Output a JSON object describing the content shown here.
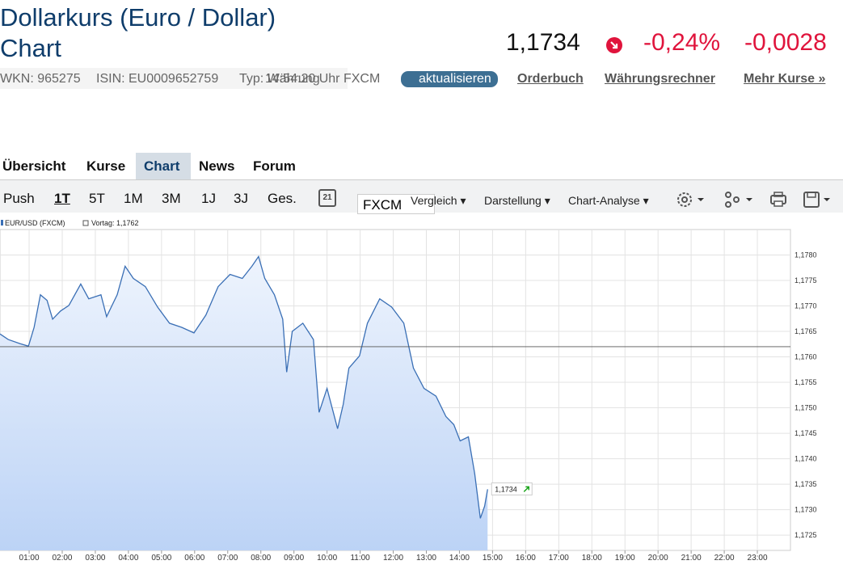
{
  "header": {
    "title": "Dollarkurs (Euro / Dollar)",
    "subtitle": "Chart",
    "price": "1,1734",
    "change_pct": "-0,24%",
    "change_abs": "-0,0028"
  },
  "info": {
    "wkn": "WKN: 965275",
    "isin": "ISIN: EU0009652759",
    "typ": "Typ: Währung",
    "time": "14:54:20 Uhr FXCM",
    "button": "aktualisieren",
    "links": [
      "Orderbuch",
      "Währungsrechner",
      "Mehr Kurse »"
    ]
  },
  "tabs": [
    "Übersicht",
    "Kurse",
    "Chart",
    "News",
    "Forum"
  ],
  "ranges": [
    "Push",
    "1T",
    "5T",
    "1M",
    "3M",
    "1J",
    "3J",
    "Ges."
  ],
  "toolbar": {
    "calendar": "21",
    "exchange": "FXCM",
    "menus": [
      "Vergleich",
      "Darstellung",
      "Chart-Analyse"
    ]
  },
  "chart_data": {
    "type": "line",
    "x": [
      0.12,
      0.37,
      0.73,
      0.98,
      1.15,
      1.34,
      1.54,
      1.71,
      1.95,
      2.2,
      2.56,
      2.8,
      3.17,
      3.34,
      3.66,
      3.9,
      4.15,
      4.51,
      4.88,
      5.24,
      5.61,
      5.98,
      6.34,
      6.71,
      7.07,
      7.44,
      7.73,
      7.93,
      8.12,
      8.41,
      8.66,
      8.78,
      8.95,
      9.27,
      9.59,
      9.76,
      10.0,
      10.32,
      10.49,
      10.66,
      10.98,
      11.22,
      11.59,
      11.95,
      12.32,
      12.61,
      12.93,
      13.29,
      13.59,
      13.83,
      14.02,
      14.27,
      14.46,
      14.63,
      14.76,
      14.85
    ],
    "series": [
      {
        "name": "EUR/USD (FXCM)",
        "color": "#3a6fb5",
        "values": [
          1.17645,
          1.17634,
          1.17626,
          1.17621,
          1.17658,
          1.17722,
          1.17711,
          1.17674,
          1.1769,
          1.17701,
          1.17743,
          1.17714,
          1.17722,
          1.17679,
          1.17722,
          1.17778,
          1.17754,
          1.17738,
          1.17698,
          1.17666,
          1.17658,
          1.17647,
          1.17682,
          1.17738,
          1.17762,
          1.17754,
          1.17778,
          1.17797,
          1.17754,
          1.17722,
          1.17674,
          1.1757,
          1.1765,
          1.17666,
          1.17634,
          1.17491,
          1.17538,
          1.17459,
          1.17507,
          1.17578,
          1.17602,
          1.17666,
          1.17714,
          1.17698,
          1.17666,
          1.17578,
          1.17538,
          1.17523,
          1.17483,
          1.17467,
          1.17435,
          1.17443,
          1.17371,
          1.17283,
          1.17307,
          1.1734
        ]
      }
    ],
    "end_label": "1,1734",
    "reference_line": {
      "value": 1.1762,
      "label": "Vortag: 1,1762"
    },
    "xlim": [
      0.12,
      24
    ],
    "xticks": [
      {
        "value": 1,
        "label": "01:00"
      },
      {
        "value": 2,
        "label": "02:00"
      },
      {
        "value": 3,
        "label": "03:00"
      },
      {
        "value": 4,
        "label": "04:00"
      },
      {
        "value": 5,
        "label": "05:00"
      },
      {
        "value": 6,
        "label": "06:00"
      },
      {
        "value": 7,
        "label": "07:00"
      },
      {
        "value": 8,
        "label": "08:00"
      },
      {
        "value": 9,
        "label": "09:00"
      },
      {
        "value": 10,
        "label": "10:00"
      },
      {
        "value": 11,
        "label": "11:00"
      },
      {
        "value": 12,
        "label": "12:00"
      },
      {
        "value": 13,
        "label": "13:00"
      },
      {
        "value": 14,
        "label": "14:00"
      },
      {
        "value": 15,
        "label": "15:00"
      },
      {
        "value": 16,
        "label": "16:00"
      },
      {
        "value": 17,
        "label": "17:00"
      },
      {
        "value": 18,
        "label": "18:00"
      },
      {
        "value": 19,
        "label": "19:00"
      },
      {
        "value": 20,
        "label": "20:00"
      },
      {
        "value": 21,
        "label": "21:00"
      },
      {
        "value": 22,
        "label": "22:00"
      },
      {
        "value": 23,
        "label": "23:00"
      }
    ],
    "ylim": [
      1.1722,
      1.1785
    ],
    "yticks": [
      {
        "value": 1.1725,
        "label": "1,1725"
      },
      {
        "value": 1.173,
        "label": "1,1730"
      },
      {
        "value": 1.1735,
        "label": "1,1735"
      },
      {
        "value": 1.174,
        "label": "1,1740"
      },
      {
        "value": 1.1745,
        "label": "1,1745"
      },
      {
        "value": 1.175,
        "label": "1,1750"
      },
      {
        "value": 1.1755,
        "label": "1,1755"
      },
      {
        "value": 1.176,
        "label": "1,1760"
      },
      {
        "value": 1.1765,
        "label": "1,1765"
      },
      {
        "value": 1.177,
        "label": "1,1770"
      },
      {
        "value": 1.1775,
        "label": "1,1775"
      },
      {
        "value": 1.178,
        "label": "1,1780"
      }
    ],
    "grid": true
  }
}
